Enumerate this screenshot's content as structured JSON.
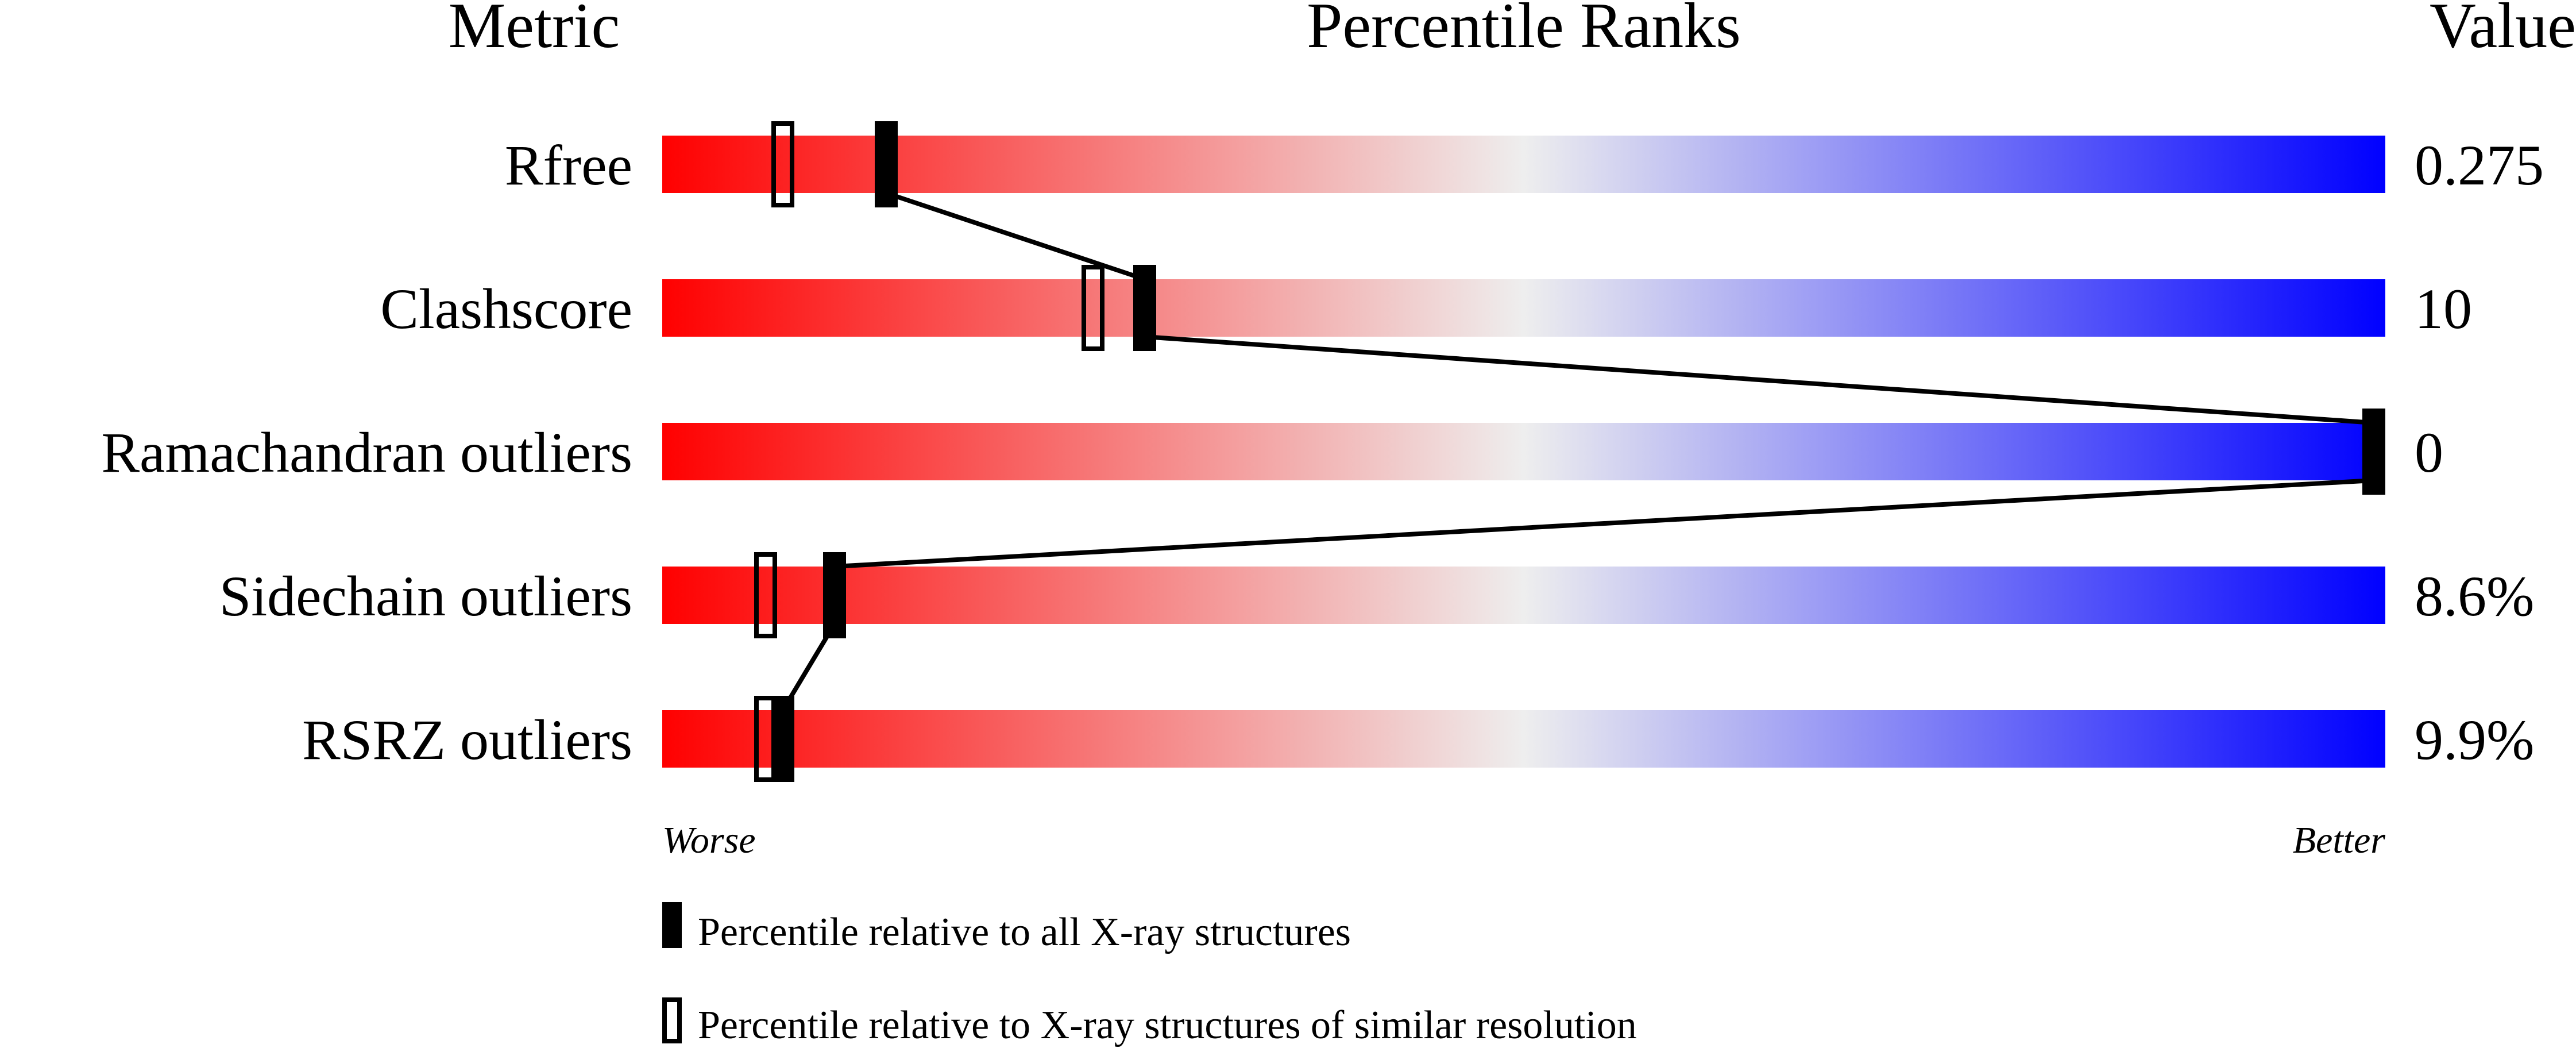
{
  "chart_data": {
    "type": "percentile-ranks",
    "headers": {
      "metric": "Metric",
      "ranks": "Percentile Ranks",
      "value": "Value"
    },
    "xlim": [
      0,
      100
    ],
    "axis_labels": {
      "left": "Worse",
      "right": "Better"
    },
    "gradient_colors": {
      "worse": "#ff0000",
      "middle": "#eeeeee",
      "better": "#0000ff"
    },
    "metrics": [
      {
        "name": "Rfree",
        "value": "0.275",
        "percentile_all": 13,
        "percentile_similar": 7
      },
      {
        "name": "Clashscore",
        "value": "10",
        "percentile_all": 28,
        "percentile_similar": 25
      },
      {
        "name": "Ramachandran outliers",
        "value": "0",
        "percentile_all": 100,
        "percentile_similar": 100
      },
      {
        "name": "Sidechain outliers",
        "value": "8.6%",
        "percentile_all": 10,
        "percentile_similar": 6
      },
      {
        "name": "RSRZ outliers",
        "value": "9.9%",
        "percentile_all": 7,
        "percentile_similar": 6
      }
    ],
    "legend": [
      {
        "marker": "filled",
        "label": "Percentile relative to all X-ray structures"
      },
      {
        "marker": "open",
        "label": "Percentile relative to X-ray structures of similar resolution"
      }
    ]
  }
}
